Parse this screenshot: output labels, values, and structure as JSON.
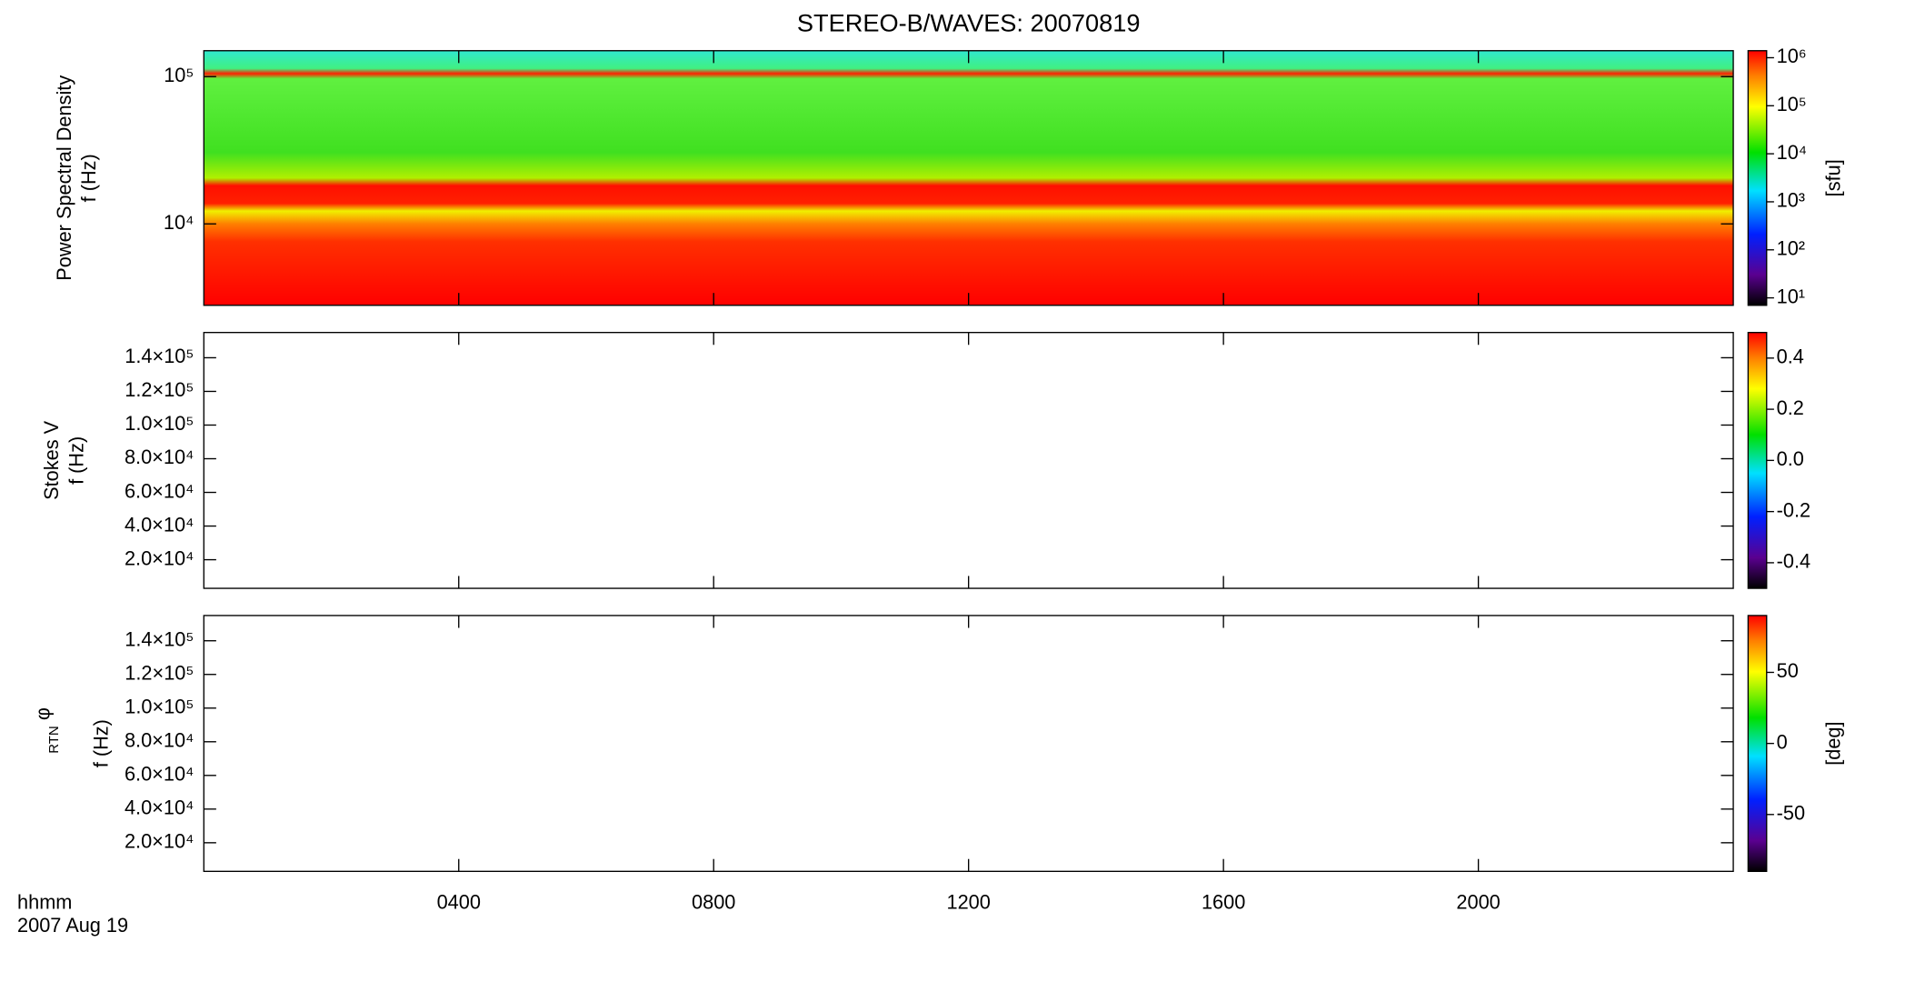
{
  "figure": {
    "title": "STEREO-B/WAVES: 20070819",
    "x_label": "hhmm",
    "date": "2007 Aug 19",
    "xlim": [
      0,
      24
    ],
    "xticks": [
      {
        "value": 4,
        "label": "0400"
      },
      {
        "value": 8,
        "label": "0800"
      },
      {
        "value": 12,
        "label": "1200"
      },
      {
        "value": 16,
        "label": "1600"
      },
      {
        "value": 20,
        "label": "2000"
      }
    ]
  },
  "chart_data": [
    {
      "type": "heatmap",
      "ylabel": [
        "Power Spectral Density",
        "f (Hz)"
      ],
      "log_y": true,
      "ylim": [
        2800,
        150000
      ],
      "yticks": [
        {
          "value": 10000,
          "label": "10⁴"
        },
        {
          "value": 100000,
          "label": "10⁵"
        }
      ],
      "colorbar": {
        "label": "[sfu]",
        "log": true,
        "clim": [
          7,
          1400000
        ],
        "ticks": [
          {
            "value": 10,
            "label": "10¹"
          },
          {
            "value": 100,
            "label": "10²"
          },
          {
            "value": 1000,
            "label": "10³"
          },
          {
            "value": 10000,
            "label": "10⁴"
          },
          {
            "value": 100000,
            "label": "10⁵"
          },
          {
            "value": 1000000,
            "label": "10⁶"
          }
        ]
      }
    },
    {
      "type": "heatmap",
      "ylabel": [
        "Stokes V",
        "f (Hz)"
      ],
      "log_y": false,
      "ylim": [
        3000,
        155000
      ],
      "yticks": [
        {
          "value": 20000,
          "label": "2.0×10⁴"
        },
        {
          "value": 40000,
          "label": "4.0×10⁴"
        },
        {
          "value": 60000,
          "label": "6.0×10⁴"
        },
        {
          "value": 80000,
          "label": "8.0×10⁴"
        },
        {
          "value": 100000,
          "label": "1.0×10⁵"
        },
        {
          "value": 120000,
          "label": "1.2×10⁵"
        },
        {
          "value": 140000,
          "label": "1.4×10⁵"
        }
      ],
      "colorbar": {
        "log": false,
        "clim": [
          -0.5,
          0.5
        ],
        "ticks": [
          -0.4,
          -0.2,
          {
            "value": 0,
            "label": "0.0"
          },
          0.2,
          0.4
        ]
      }
    },
    {
      "type": "heatmap",
      "ylabel_symbol": "φ",
      "ylabel_subscript": "RTN",
      "ylabel": [
        "f (Hz)"
      ],
      "log_y": false,
      "ylim": [
        3000,
        155000
      ],
      "yticks": [
        {
          "value": 20000,
          "label": "2.0×10⁴"
        },
        {
          "value": 40000,
          "label": "4.0×10⁴"
        },
        {
          "value": 60000,
          "label": "6.0×10⁴"
        },
        {
          "value": 80000,
          "label": "8.0×10⁴"
        },
        {
          "value": 100000,
          "label": "1.0×10⁵"
        },
        {
          "value": 120000,
          "label": "1.2×10⁵"
        },
        {
          "value": 140000,
          "label": "1.4×10⁵"
        }
      ],
      "colorbar": {
        "label": "[deg]",
        "log": false,
        "clim": [
          -90,
          90
        ],
        "ticks": [
          -50,
          0,
          50
        ]
      }
    }
  ]
}
